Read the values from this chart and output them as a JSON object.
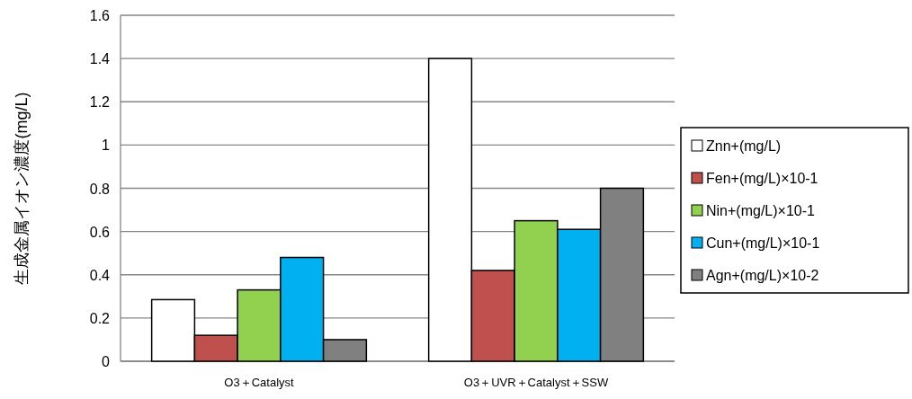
{
  "chart_data": {
    "type": "bar",
    "ylabel": "生成金属イオン濃度(mg/L)",
    "categories": [
      "O3＋Catalyst",
      "O3＋UVR＋Catalyst＋SSW"
    ],
    "series": [
      {
        "name": "Znn+(mg/L)",
        "color": "#ffffff",
        "values": [
          0.285,
          1.4
        ]
      },
      {
        "name": "Fen+(mg/L)×10-1",
        "color": "#c0504d",
        "values": [
          0.12,
          0.42
        ]
      },
      {
        "name": "Nin+(mg/L)×10-1",
        "color": "#92d050",
        "values": [
          0.33,
          0.65
        ]
      },
      {
        "name": "Cun+(mg/L)×10-1",
        "color": "#00b0f0",
        "values": [
          0.48,
          0.61
        ]
      },
      {
        "name": "Agn+(mg/L)×10-2",
        "color": "#808080",
        "values": [
          0.1,
          0.8
        ]
      }
    ],
    "ylim": [
      0,
      1.6
    ],
    "yticks": [
      0,
      0.2,
      0.4,
      0.6,
      0.8,
      1,
      1.2,
      1.4,
      1.6
    ],
    "grid": "y",
    "legend": "right"
  }
}
